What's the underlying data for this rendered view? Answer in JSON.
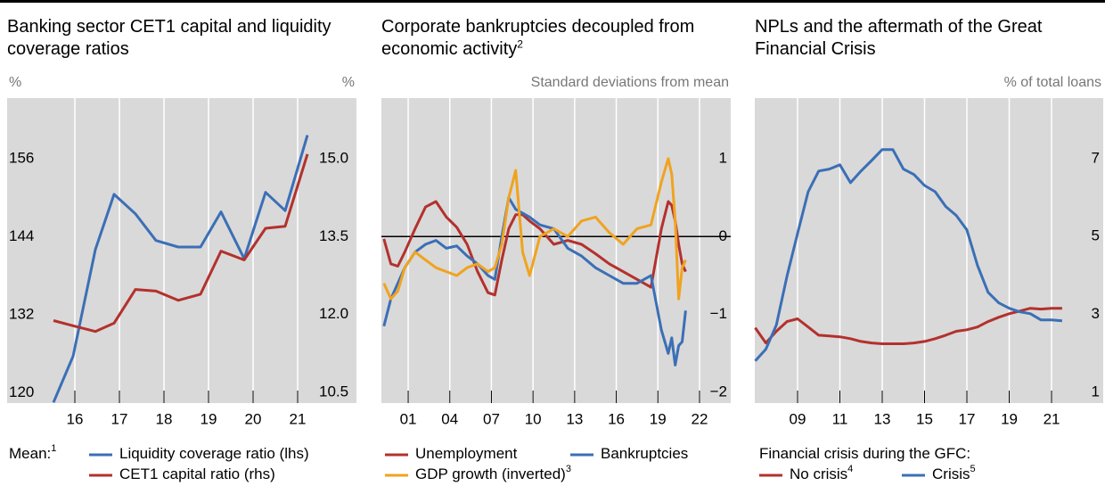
{
  "chart_data": [
    {
      "type": "line",
      "title": "Banking sector CET1 capital and liquidity coverage ratios",
      "y_label": "%",
      "y2_label": "%",
      "legend_title": "Mean:",
      "legend_title_note": "1",
      "x": [
        2016.02,
        2016.46,
        2016.96,
        2017.38,
        2017.86,
        2018.32,
        2018.82,
        2019.32,
        2019.78,
        2020.3,
        2020.78,
        2021.22,
        2021.72
      ],
      "xlim": [
        2014.98,
        2022.82
      ],
      "xticks": [
        {
          "value": 2016.5,
          "label": "16"
        },
        {
          "value": 2017.5,
          "label": "17"
        },
        {
          "value": 2018.5,
          "label": "18"
        },
        {
          "value": 2019.5,
          "label": "19"
        },
        {
          "value": 2020.5,
          "label": "20"
        },
        {
          "value": 2021.5,
          "label": "21"
        }
      ],
      "ylim": [
        118.4,
        165.3
      ],
      "yticks": [
        120,
        132,
        144,
        156
      ],
      "y2lim": [
        10.29,
        16.17
      ],
      "y2ticks": [
        10.5,
        {
          "value": 12,
          "label": "12.0"
        },
        13.5,
        {
          "value": 15,
          "label": "15.0"
        }
      ],
      "grid": "x",
      "series": [
        {
          "name": "Liquidity coverage ratio (lhs)",
          "color": "#3b6fb6",
          "values": [
            118.5,
            125.6,
            142.0,
            150.5,
            147.5,
            143.4,
            142.4,
            142.4,
            147.8,
            140.6,
            150.8,
            148.0,
            159.6
          ]
        },
        {
          "name": "CET1 capital ratio (rhs)",
          "color": "#b3312d",
          "axis": "y2",
          "values": [
            11.88,
            11.78,
            11.67,
            11.83,
            12.48,
            12.45,
            12.27,
            12.39,
            13.22,
            13.05,
            13.66,
            13.7,
            15.09
          ]
        }
      ]
    },
    {
      "type": "line",
      "title": "Corporate bankruptcies decoupled from economic activity",
      "title_note": "2",
      "y_label": "Standard deviations from mean",
      "x": [
        1999.25,
        1999.75,
        2000.25,
        2000.75,
        2001.5,
        2002.25,
        2003,
        2003.75,
        2004.5,
        2005.25,
        2006,
        2006.75,
        2007.25,
        2007.75,
        2008.25,
        2008.75,
        2009.25,
        2009.75,
        2010.5,
        2011.5,
        2012.5,
        2013.5,
        2014.5,
        2015.5,
        2016.5,
        2017.5,
        2018.5,
        2019.25,
        2019.75,
        2020,
        2020.25,
        2020.5,
        2020.75,
        2021
      ],
      "xlim": [
        1999.07,
        2024.25
      ],
      "xticks": [
        {
          "value": 2001,
          "label": "01"
        },
        {
          "value": 2004,
          "label": "04"
        },
        {
          "value": 2007,
          "label": "07"
        },
        {
          "value": 2010,
          "label": "10"
        },
        {
          "value": 2013,
          "label": "13"
        },
        {
          "value": 2016,
          "label": "16"
        },
        {
          "value": 2019,
          "label": "19"
        },
        {
          "value": 2022,
          "label": "22"
        }
      ],
      "ylim": [
        -2.137,
        1.777
      ],
      "yticks": [
        {
          "value": -2,
          "label": "−2"
        },
        {
          "value": -1,
          "label": "−1"
        },
        0,
        1
      ],
      "reference_line": 0,
      "grid": "x",
      "series": [
        {
          "name": "Unemployment",
          "color": "#b3312d",
          "values": [
            -0.03,
            -0.35,
            -0.38,
            -0.2,
            0.1,
            0.38,
            0.45,
            0.25,
            0.12,
            -0.1,
            -0.45,
            -0.72,
            -0.75,
            -0.3,
            0.1,
            0.28,
            0.28,
            0.2,
            0.1,
            -0.1,
            -0.05,
            -0.1,
            -0.22,
            -0.35,
            -0.45,
            -0.55,
            -0.65,
            0.1,
            0.45,
            0.4,
            0.2,
            -0.1,
            -0.35,
            -0.45
          ]
        },
        {
          "name": "Bankruptcies",
          "color": "#3b6fb6",
          "values": [
            -1.15,
            -0.8,
            -0.6,
            -0.4,
            -0.2,
            -0.1,
            -0.05,
            -0.15,
            -0.12,
            -0.25,
            -0.35,
            -0.5,
            -0.55,
            0.0,
            0.5,
            0.35,
            0.3,
            0.25,
            0.15,
            0.1,
            -0.15,
            -0.25,
            -0.4,
            -0.5,
            -0.6,
            -0.6,
            -0.5,
            -1.2,
            -1.5,
            -1.3,
            -1.65,
            -1.4,
            -1.35,
            -0.95
          ]
        },
        {
          "name": "GDP growth (inverted)",
          "note": "3",
          "color": "#f0a31f",
          "values": [
            -0.6,
            -0.8,
            -0.7,
            -0.4,
            -0.2,
            -0.3,
            -0.4,
            -0.45,
            -0.5,
            -0.4,
            -0.35,
            -0.45,
            -0.4,
            -0.1,
            0.5,
            0.85,
            -0.2,
            -0.5,
            0.0,
            0.1,
            0.0,
            0.2,
            0.25,
            0.05,
            -0.1,
            0.1,
            0.15,
            0.7,
            1.0,
            0.8,
            0.2,
            -0.8,
            -0.4,
            -0.3
          ]
        }
      ]
    },
    {
      "type": "line",
      "title": "NPLs and the aftermath of the Great Financial Crisis",
      "y_label": "% of total loans",
      "legend_title": "Financial crisis during the GFC:",
      "x": [
        2007,
        2007.5,
        2008,
        2008.5,
        2009,
        2009.5,
        2010,
        2010.5,
        2011,
        2011.5,
        2012,
        2012.5,
        2013,
        2013.5,
        2014,
        2014.5,
        2015,
        2015.5,
        2016,
        2016.5,
        2017,
        2017.5,
        2018,
        2018.5,
        2019,
        2019.5,
        2020,
        2020.5,
        2021,
        2021.5
      ],
      "xlim": [
        2006.98,
        2023.44
      ],
      "xticks": [
        {
          "value": 2009,
          "label": "09"
        },
        {
          "value": 2011,
          "label": "11"
        },
        {
          "value": 2013,
          "label": "13"
        },
        {
          "value": 2015,
          "label": "15"
        },
        {
          "value": 2017,
          "label": "17"
        },
        {
          "value": 2019,
          "label": "19"
        },
        {
          "value": 2021,
          "label": "21"
        }
      ],
      "ylim": [
        0.73,
        8.55
      ],
      "yticks": [
        1,
        3,
        5,
        7
      ],
      "grid": "x",
      "series": [
        {
          "name": "No crisis",
          "note": "4",
          "color": "#b3312d",
          "values": [
            2.66,
            2.27,
            2.57,
            2.82,
            2.89,
            2.68,
            2.47,
            2.45,
            2.43,
            2.38,
            2.31,
            2.27,
            2.25,
            2.25,
            2.25,
            2.27,
            2.31,
            2.38,
            2.47,
            2.57,
            2.61,
            2.68,
            2.82,
            2.93,
            3.02,
            3.09,
            3.16,
            3.14,
            3.16,
            3.16
          ]
        },
        {
          "name": "Crisis",
          "note": "5",
          "color": "#3b6fb6",
          "values": [
            1.81,
            2.11,
            2.73,
            3.98,
            5.08,
            6.15,
            6.68,
            6.73,
            6.84,
            6.38,
            6.68,
            6.95,
            7.23,
            7.23,
            6.73,
            6.59,
            6.31,
            6.15,
            5.77,
            5.54,
            5.17,
            4.26,
            3.57,
            3.3,
            3.16,
            3.07,
            3.02,
            2.86,
            2.86,
            2.84
          ]
        }
      ]
    }
  ]
}
